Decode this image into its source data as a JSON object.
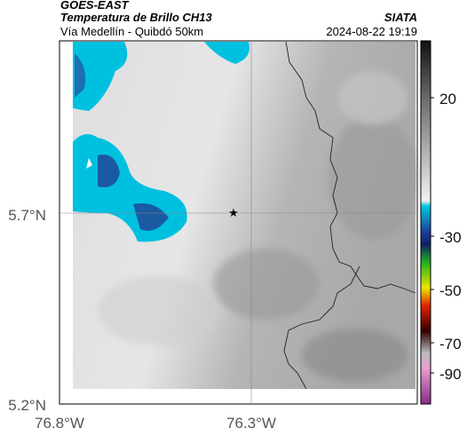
{
  "header": {
    "satellite": "GOES-EAST",
    "product": "Temperatura de Brillo CH13",
    "source": "SIATA",
    "route": "Vía Medellín - Quibdó 50km",
    "timestamp": "2024-08-22 19:19"
  },
  "axes": {
    "latitude_labels": [
      "5.7°N",
      "5.2°N"
    ],
    "longitude_labels": [
      "76.8°W",
      "76.3°W"
    ]
  },
  "colorbar": {
    "tick_labels": [
      "20",
      "-30",
      "-50",
      "-70",
      "-90"
    ]
  }
}
